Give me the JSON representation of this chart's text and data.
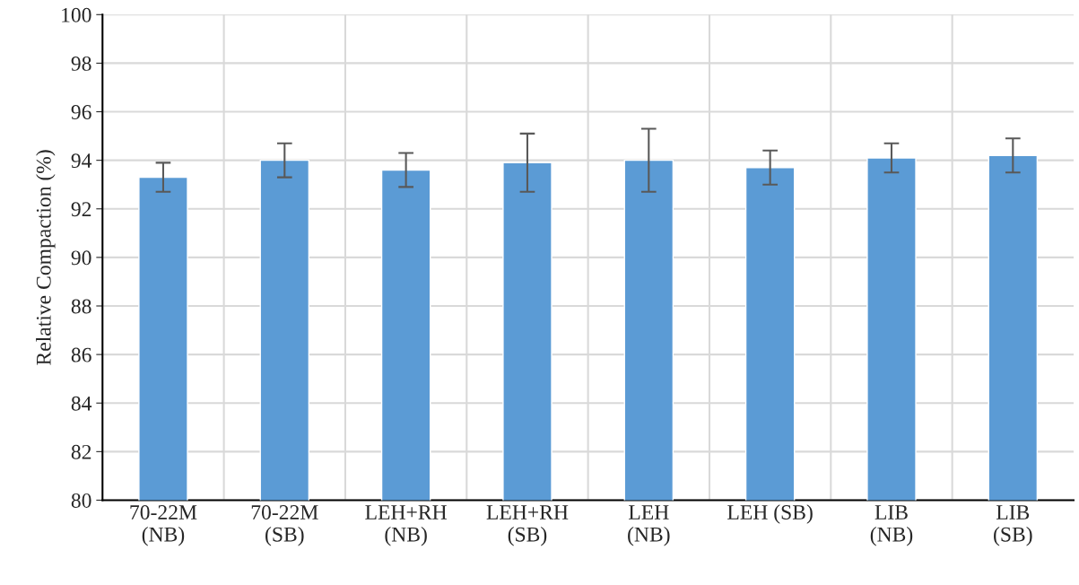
{
  "chart_data": {
    "type": "bar",
    "ylabel": "Relative Compaction (%)",
    "categories": [
      "70-22M\n(NB)",
      "70-22M\n(SB)",
      "LEH+RH\n(NB)",
      "LEH+RH\n(SB)",
      "LEH\n(NB)",
      "LEH (SB)",
      "LIB\n(NB)",
      "LIB\n(SB)"
    ],
    "values": [
      93.3,
      94.0,
      93.6,
      93.9,
      94.0,
      93.7,
      94.1,
      94.2
    ],
    "errors": [
      0.6,
      0.7,
      0.7,
      1.2,
      1.3,
      0.7,
      0.6,
      0.7
    ],
    "color": "#5b9bd5",
    "ylim": [
      80,
      100
    ],
    "yticks": [
      80,
      82,
      84,
      86,
      88,
      90,
      92,
      94,
      96,
      98,
      100
    ],
    "grid": true
  }
}
